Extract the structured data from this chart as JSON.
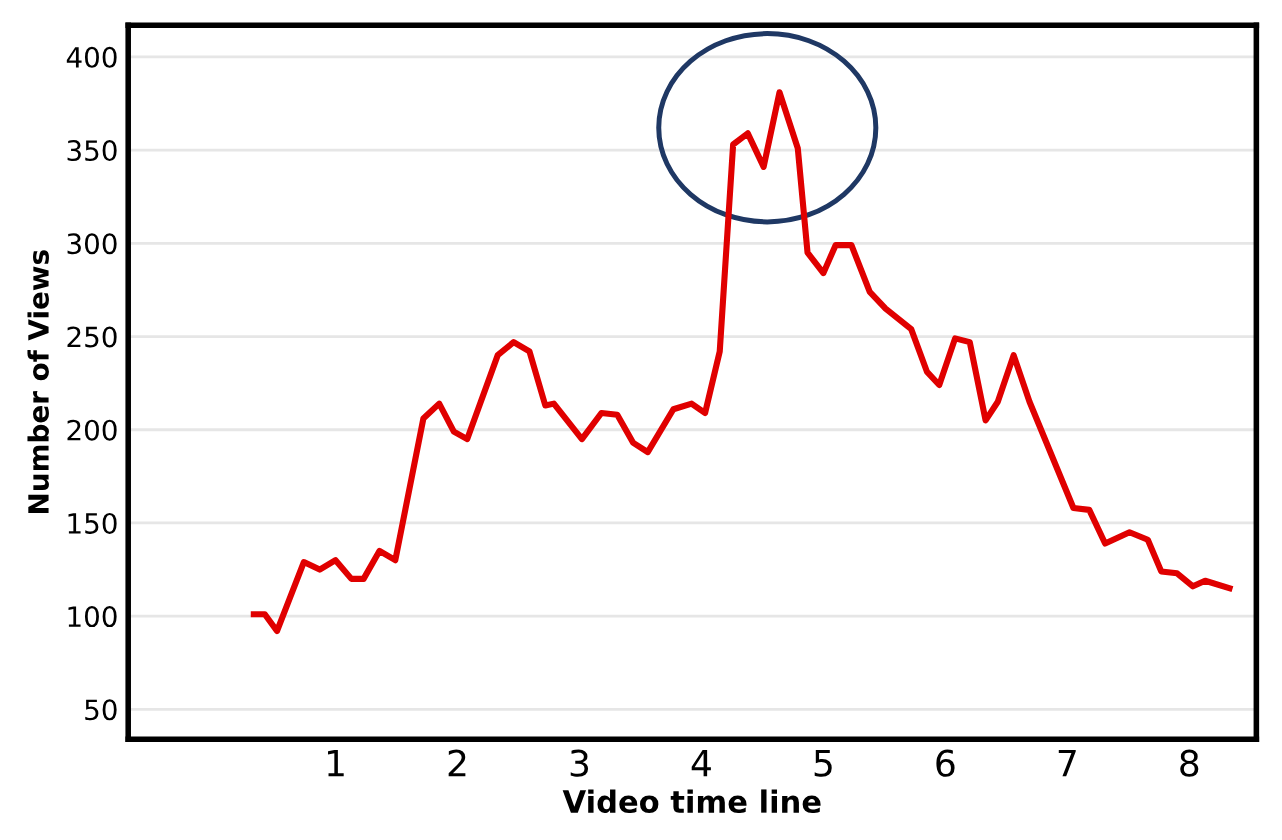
{
  "chart_data": {
    "type": "line",
    "xlabel": "Video time line",
    "ylabel": "Number of Views",
    "x": [
      0.33,
      0.42,
      0.52,
      0.74,
      0.87,
      1.0,
      1.13,
      1.23,
      1.36,
      1.49,
      1.72,
      1.85,
      1.97,
      2.08,
      2.33,
      2.46,
      2.59,
      2.72,
      2.79,
      3.02,
      3.18,
      3.31,
      3.44,
      3.56,
      3.77,
      3.92,
      4.03,
      4.15,
      4.26,
      4.38,
      4.51,
      4.64,
      4.79,
      4.87,
      5.0,
      5.1,
      5.23,
      5.38,
      5.51,
      5.72,
      5.85,
      5.95,
      6.08,
      6.2,
      6.33,
      6.43,
      6.56,
      6.69,
      7.05,
      7.18,
      7.31,
      7.51,
      7.66,
      7.77,
      7.9,
      8.03,
      8.13,
      8.33
    ],
    "series": [
      {
        "color": "#e00000",
        "values": [
          101,
          101,
          92,
          129,
          125,
          130,
          120,
          120,
          135,
          130,
          206,
          214,
          199,
          195,
          240,
          247,
          242,
          213,
          214,
          195,
          209,
          208,
          193,
          188,
          211,
          214,
          209,
          242,
          353,
          359,
          341,
          381,
          351,
          295,
          284,
          299,
          299,
          274,
          265,
          254,
          231,
          224,
          249,
          247,
          205,
          215,
          240,
          215,
          158,
          157,
          139,
          145,
          141,
          124,
          123,
          116,
          119,
          115
        ]
      }
    ],
    "xlim": [
      -0.7,
      8.55
    ],
    "ylim": [
      34,
      417
    ],
    "xticks": [
      1,
      2,
      3,
      4,
      5,
      6,
      7,
      8
    ],
    "yticks": [
      50,
      100,
      150,
      200,
      250,
      300,
      350,
      400
    ],
    "grid": "y",
    "marker": "none",
    "line_style": "solid"
  }
}
